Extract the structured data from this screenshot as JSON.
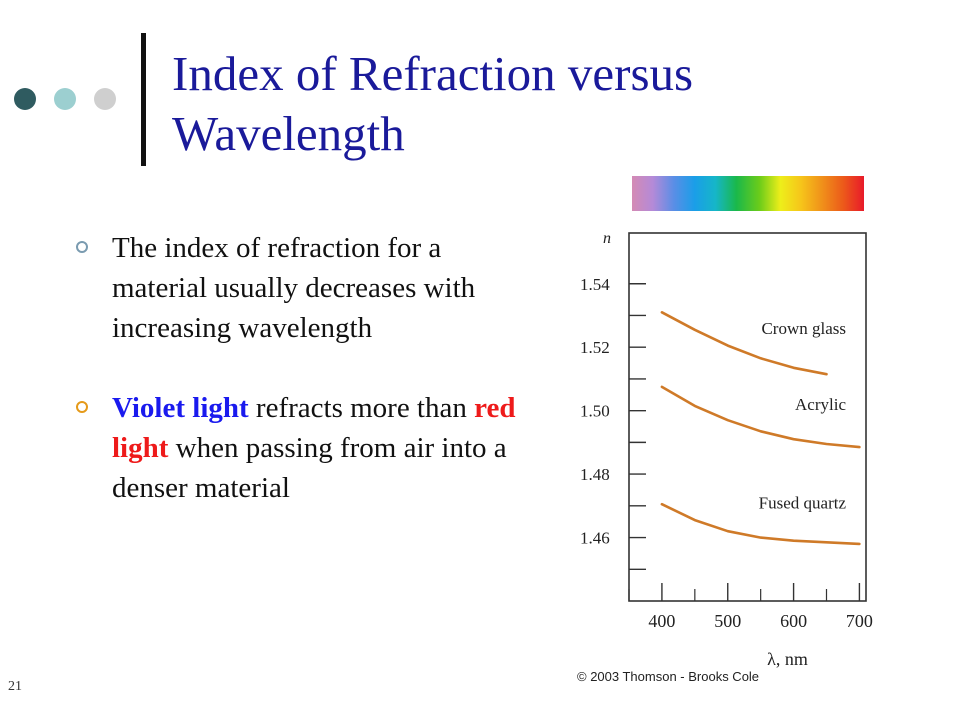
{
  "slide": {
    "title": "Index of Refraction versus Wavelength",
    "number": "21",
    "accent_color": "#1a1a9a",
    "deco_dot_colors": [
      "#2f5b60",
      "#9ccfd0",
      "#cfcfcf"
    ]
  },
  "bullets": [
    {
      "marker_color": "#7a9bb0",
      "segments": [
        {
          "text": "The index of refraction for a material usually decreases with increasing wavelength",
          "color": "#111111",
          "bold": false
        }
      ]
    },
    {
      "marker_color": "#e59a1a",
      "segments": [
        {
          "text": "Violet light",
          "color": "#1a1aee",
          "bold": true
        },
        {
          "text": " refracts more than ",
          "color": "#111111",
          "bold": false
        },
        {
          "text": "red light",
          "color": "#ee1a1a",
          "bold": true
        },
        {
          "text": " when passing from air into a denser material",
          "color": "#111111",
          "bold": false
        }
      ]
    }
  ],
  "spectrum": {
    "colors": [
      "#d48ab4",
      "#b48ad8",
      "#5a8ee6",
      "#1a9ee8",
      "#16b6c8",
      "#1ab84a",
      "#6ccc1a",
      "#eeee1a",
      "#f6c41a",
      "#f0901a",
      "#ec5a1a",
      "#e81a2a"
    ]
  },
  "credit": "© 2003 Thomson - Brooks Cole",
  "chart_data": {
    "type": "line",
    "xlabel": "λ, nm",
    "ylabel": "n",
    "xlim": [
      350,
      710
    ],
    "ylim": [
      1.44,
      1.556
    ],
    "x_ticks": [
      400,
      500,
      600,
      700
    ],
    "y_tick_labels": [
      1.46,
      1.48,
      1.5,
      1.52,
      1.54
    ],
    "y_minor_ticks": [
      1.45,
      1.47,
      1.49,
      1.51,
      1.53
    ],
    "grid": false,
    "line_color": "#cf7a28",
    "series": [
      {
        "name": "Crown glass",
        "x": [
          400,
          450,
          500,
          550,
          600,
          650
        ],
        "y": [
          1.531,
          1.5255,
          1.5205,
          1.5165,
          1.5135,
          1.5115
        ]
      },
      {
        "name": "Acrylic",
        "x": [
          400,
          450,
          500,
          550,
          600,
          650,
          700
        ],
        "y": [
          1.5075,
          1.5015,
          1.497,
          1.4935,
          1.491,
          1.4895,
          1.4885
        ]
      },
      {
        "name": "Fused quartz",
        "x": [
          400,
          450,
          500,
          550,
          600,
          650,
          700
        ],
        "y": [
          1.4705,
          1.4655,
          1.462,
          1.46,
          1.459,
          1.4585,
          1.458
        ]
      }
    ]
  }
}
